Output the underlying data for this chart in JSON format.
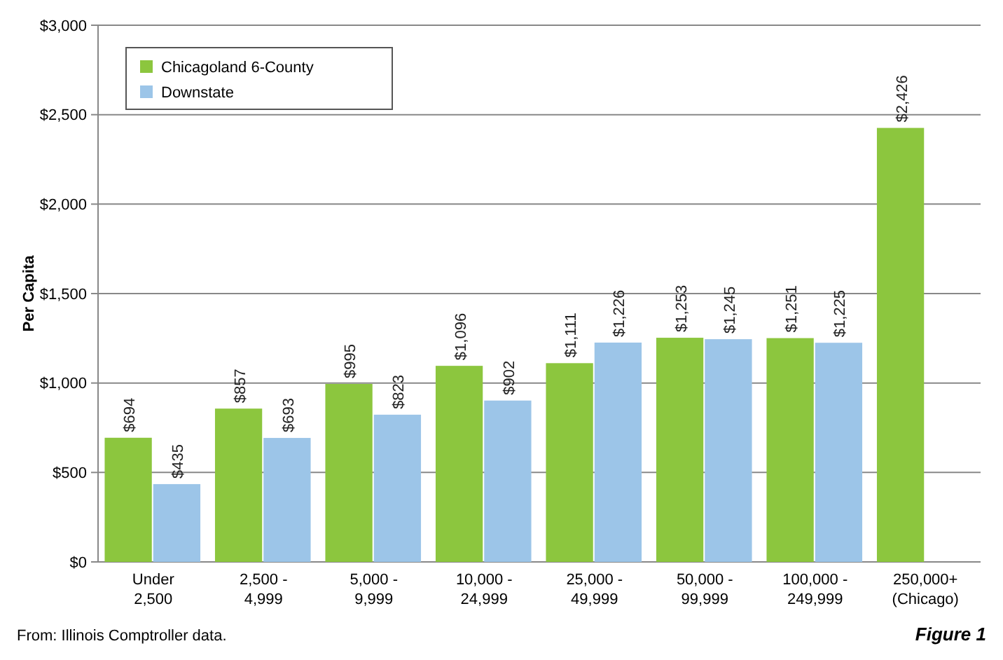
{
  "chart_data": {
    "type": "bar",
    "ylabel": "Per Capita",
    "categories": [
      "Under\n2,500",
      "2,500 -\n4,999",
      "5,000 -\n9,999",
      "10,000 -\n24,999",
      "25,000 -\n49,999",
      "50,000 -\n99,999",
      "100,000 -\n249,999",
      "250,000+\n(Chicago)"
    ],
    "series": [
      {
        "name": "Chicagoland 6-County",
        "color": "#8cc63e",
        "values": [
          694,
          857,
          995,
          1096,
          1111,
          1253,
          1251,
          2426
        ],
        "value_labels": [
          "$694",
          "$857",
          "$995",
          "$1,096",
          "$1,111",
          "$1,253",
          "$1,251",
          "$2,426"
        ]
      },
      {
        "name": "Downstate",
        "color": "#9cc5e8",
        "values": [
          435,
          693,
          823,
          902,
          1226,
          1245,
          1225,
          null
        ],
        "value_labels": [
          "$435",
          "$693",
          "$823",
          "$902",
          "$1,226",
          "$1,245",
          "$1,225",
          null
        ]
      }
    ],
    "ylim": [
      0,
      3000
    ],
    "yticks": [
      {
        "value": 0,
        "label": "$0"
      },
      {
        "value": 500,
        "label": "$500"
      },
      {
        "value": 1000,
        "label": "$1,000"
      },
      {
        "value": 1500,
        "label": "$1,500"
      },
      {
        "value": 2000,
        "label": "$2,000"
      },
      {
        "value": 2500,
        "label": "$2,500"
      },
      {
        "value": 3000,
        "label": "$3,000"
      }
    ],
    "grid": "y",
    "legend": "top left",
    "annotations": [
      "From: Illinois Comptroller data.",
      "Figure 1"
    ]
  }
}
